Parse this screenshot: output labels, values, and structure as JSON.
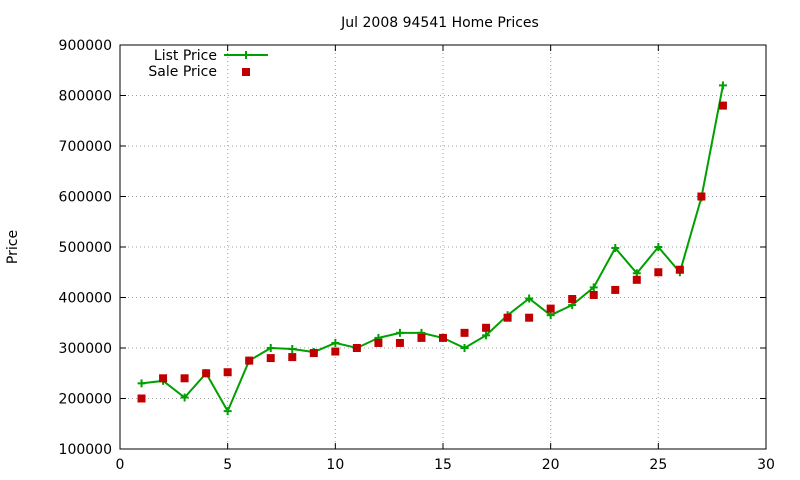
{
  "chart_data": {
    "type": "line",
    "title": "Jul 2008 94541 Home Prices",
    "xlabel": "",
    "ylabel": "Price",
    "xlim": [
      0,
      30
    ],
    "ylim": [
      100000,
      900000
    ],
    "x_ticks": [
      0,
      5,
      10,
      15,
      20,
      25,
      30
    ],
    "y_ticks": [
      100000,
      200000,
      300000,
      400000,
      500000,
      600000,
      700000,
      800000,
      900000
    ],
    "grid": true,
    "legend_position": "top-left",
    "x": [
      1,
      2,
      3,
      4,
      5,
      6,
      7,
      8,
      9,
      10,
      11,
      12,
      13,
      14,
      15,
      16,
      17,
      18,
      19,
      20,
      21,
      22,
      23,
      24,
      25,
      26,
      27,
      28
    ],
    "series": [
      {
        "name": "List Price",
        "style": "linespoints",
        "color": "#00a000",
        "values": [
          230000,
          235000,
          202000,
          250000,
          175000,
          275000,
          300000,
          298000,
          292000,
          310000,
          300000,
          320000,
          330000,
          330000,
          320000,
          300000,
          325000,
          365000,
          398000,
          365000,
          385000,
          420000,
          498000,
          448000,
          500000,
          450000,
          598000,
          820000
        ]
      },
      {
        "name": "Sale Price",
        "style": "points",
        "color": "#c00000",
        "values": [
          200000,
          240000,
          240000,
          250000,
          252000,
          275000,
          280000,
          282000,
          290000,
          293000,
          300000,
          310000,
          310000,
          320000,
          320000,
          330000,
          340000,
          360000,
          360000,
          378000,
          397000,
          405000,
          415000,
          435000,
          450000,
          455000,
          600000,
          780000
        ]
      }
    ]
  }
}
